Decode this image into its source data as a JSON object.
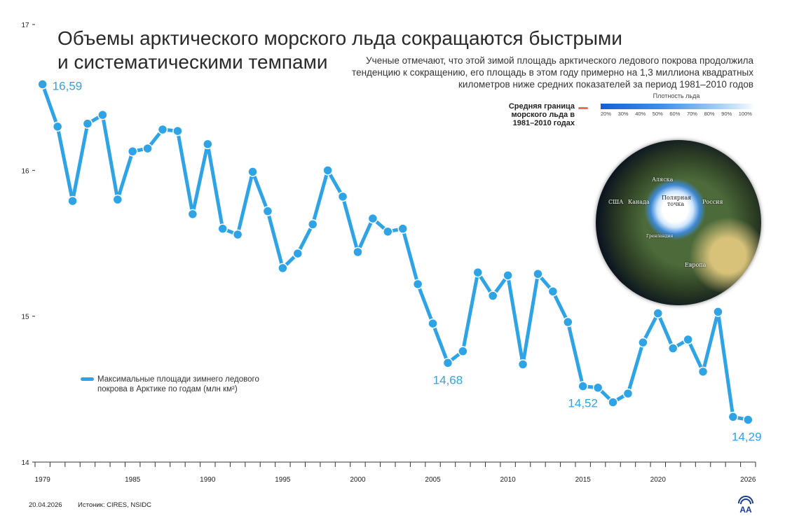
{
  "title_line1": "Объемы арктического морского льда сокращаются быстрыми",
  "title_line2": "и систематическими темпами",
  "subtitle": "Ученые отмечают, что этой зимой площадь арктического ледового покрова продолжила тенденцию к сокращению, его площадь в этом году примерно на 1,3 миллиона квадратных километров ниже средних показателей за период 1981–2010 годов",
  "map_legend": {
    "border_label": "Средняя граница морского льда в 1981–2010 годах",
    "border_color": "#e8734a",
    "density_title": "Плотность льда",
    "density_ticks": [
      "20%",
      "30%",
      "40%",
      "50%",
      "60%",
      "70%",
      "80%",
      "90%",
      "100%"
    ]
  },
  "map_labels": {
    "usa": "США",
    "canada": "Канада",
    "alaska": "Аляска",
    "pole": "Полярная точка",
    "russia": "Россия",
    "greenland": "Гренландия",
    "europe": "Европа"
  },
  "legend_text": "Максимальные площади зимнего ледового покрова в Арктике по годам (млн км²)",
  "footer": {
    "date": "20.04.2026",
    "source": "Истоник: CIRES, NSIDC"
  },
  "logo_text": "AA",
  "chart_data": {
    "type": "line",
    "title": "Объемы арктического морского льда сокращаются быстрыми и систематическими темпами",
    "xlabel": "",
    "ylabel": "млн км²",
    "ylim": [
      14,
      17
    ],
    "yticks": [
      14,
      15,
      16,
      17
    ],
    "xtick_labels": [
      1979,
      1985,
      1990,
      1995,
      2000,
      2005,
      2010,
      2015,
      2020,
      2026
    ],
    "series": [
      {
        "name": "Максимальные площади зимнего ледового покрова в Арктике по годам (млн км²)",
        "color": "#2ea3e5",
        "x": [
          1979,
          1980,
          1981,
          1982,
          1983,
          1984,
          1985,
          1986,
          1987,
          1988,
          1989,
          1990,
          1991,
          1992,
          1993,
          1994,
          1995,
          1996,
          1997,
          1998,
          1999,
          2000,
          2001,
          2002,
          2003,
          2004,
          2005,
          2006,
          2007,
          2008,
          2009,
          2010,
          2011,
          2012,
          2013,
          2014,
          2015,
          2016,
          2017,
          2018,
          2019,
          2020,
          2021,
          2022,
          2023,
          2024,
          2025,
          2026
        ],
        "values": [
          16.59,
          16.3,
          15.79,
          16.32,
          16.38,
          15.8,
          16.13,
          16.15,
          16.28,
          16.27,
          15.7,
          16.18,
          15.6,
          15.56,
          15.99,
          15.72,
          15.33,
          15.43,
          15.63,
          16.0,
          15.82,
          15.44,
          15.67,
          15.58,
          15.6,
          15.22,
          14.95,
          14.68,
          14.76,
          15.3,
          15.14,
          15.28,
          14.67,
          15.29,
          15.17,
          14.96,
          14.52,
          14.51,
          14.41,
          14.47,
          14.82,
          15.02,
          14.78,
          14.84,
          14.62,
          15.03,
          14.31,
          14.29
        ]
      }
    ],
    "annotations": [
      {
        "x": 1979,
        "text": "16,59",
        "pos": "right"
      },
      {
        "x": 2006,
        "text": "14,68",
        "pos": "below"
      },
      {
        "x": 2015,
        "text": "14,52",
        "pos": "below"
      },
      {
        "x": 2026,
        "text": "14,29",
        "pos": "below"
      }
    ],
    "grid": false,
    "legend": "bottom-left"
  }
}
